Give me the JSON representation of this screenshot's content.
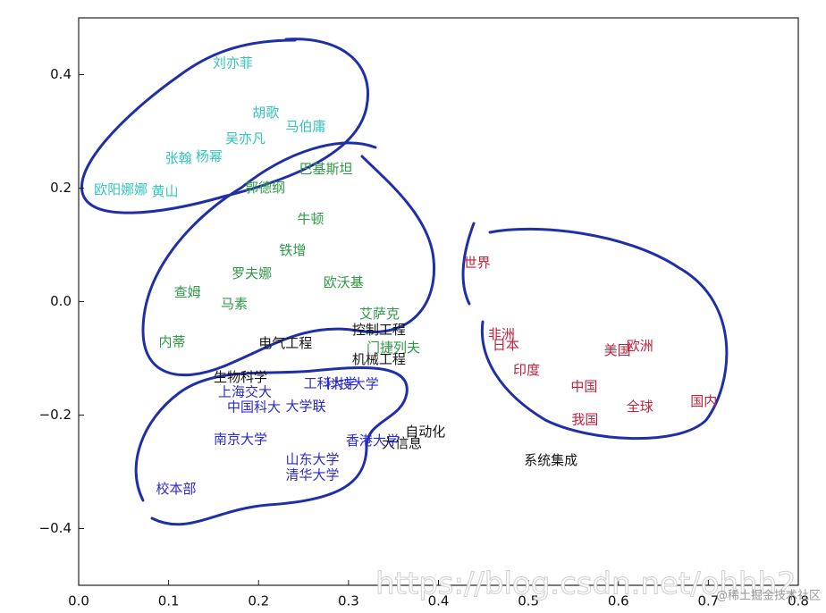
{
  "chart_data": {
    "type": "scatter",
    "xlim": [
      0,
      0.8
    ],
    "xticks": [
      {
        "value": 0,
        "label": "0.0"
      },
      0.1,
      0.2,
      0.3,
      0.4,
      0.5,
      0.6,
      0.7,
      0.8
    ],
    "ylim": [
      -0.5,
      0.5
    ],
    "yticks": [
      {
        "value": -0.4,
        "label": "−0.4"
      },
      {
        "value": -0.2,
        "label": "−0.2"
      },
      {
        "value": 0,
        "label": "0.0"
      },
      0.2,
      0.4
    ],
    "series": [
      {
        "color": "#35c4bb",
        "words": [
          "刘亦菲",
          "胡歌",
          "马伯庸",
          "吴亦凡",
          "张翰",
          "杨幂",
          "欧阳娜娜",
          "黄山"
        ],
        "x": [
          0.149,
          0.193,
          0.23,
          0.163,
          0.096,
          0.13,
          0.017,
          0.081
        ],
        "values": [
          0.42,
          0.332,
          0.308,
          0.287,
          0.252,
          0.255,
          0.197,
          0.194
        ]
      },
      {
        "color": "#2f9a45",
        "words": [
          "巴基斯坦",
          "郭德纲",
          "牛顿",
          "铁增",
          "罗夫娜",
          "欧沃基",
          "查姆",
          "马素",
          "艾萨克",
          "内蒂",
          "门捷列夫"
        ],
        "x": [
          0.245,
          0.185,
          0.243,
          0.223,
          0.17,
          0.272,
          0.106,
          0.158,
          0.312,
          0.089,
          0.32
        ],
        "values": [
          0.233,
          0.2,
          0.145,
          0.09,
          0.049,
          0.033,
          0.016,
          -0.005,
          -0.022,
          -0.072,
          -0.082
        ]
      },
      {
        "color": "#151515",
        "words": [
          "电气工程",
          "控制工程",
          "机械工程",
          "生物科学",
          "自动化",
          "大信息",
          "系统集成"
        ],
        "x": [
          0.2,
          0.304,
          0.304,
          0.15,
          0.363,
          0.337,
          0.495
        ],
        "values": [
          -0.074,
          -0.05,
          -0.102,
          -0.134,
          -0.23,
          -0.25,
          -0.28
        ]
      },
      {
        "color": "#2a2ad0",
        "words": [
          "上海交大",
          "工科大学",
          "科技大学",
          "中国科大",
          "大学联",
          "南京大学",
          "香港大学",
          "山东大学",
          "清华大学",
          "校本部"
        ],
        "x": [
          0.155,
          0.25,
          0.274,
          0.165,
          0.23,
          0.15,
          0.297,
          0.23,
          0.23,
          0.086
        ],
        "values": [
          -0.16,
          -0.145,
          -0.146,
          -0.187,
          -0.185,
          -0.243,
          -0.246,
          -0.279,
          -0.306,
          -0.331
        ]
      },
      {
        "color": "#c0203a",
        "words": [
          "世界",
          "非洲",
          "日本",
          "美国",
          "欧洲",
          "印度",
          "中国",
          "全球",
          "国内",
          "我国"
        ],
        "x": [
          0.428,
          0.455,
          0.46,
          0.584,
          0.609,
          0.483,
          0.547,
          0.609,
          0.68,
          0.548
        ],
        "values": [
          0.068,
          -0.058,
          -0.077,
          -0.087,
          -0.079,
          -0.121,
          -0.15,
          -0.186,
          -0.176,
          -0.209
        ]
      }
    ]
  },
  "watermark": "https://blog.csdn.net/ohhh2",
  "credit": "@稀土掘金技术社区"
}
